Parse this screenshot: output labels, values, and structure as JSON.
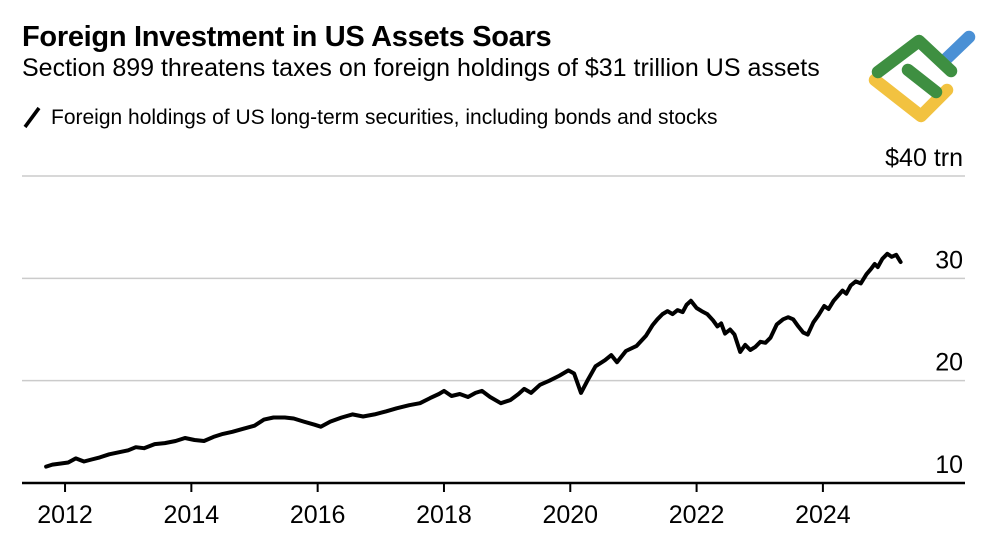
{
  "header": {
    "title": "Foreign Investment in US Assets Soars",
    "subtitle": "Section 899 threatens taxes on foreign holdings of $31 trillion US assets"
  },
  "legend": {
    "label": "Foreign holdings of US long-term securities, including bonds and stocks"
  },
  "logo": {
    "name": "litefinance-logo"
  },
  "colors": {
    "text": "#000000",
    "line": "#000000",
    "grid": "#cbcbcb",
    "axis": "#000000",
    "logo_green": "#3E8F41",
    "logo_blue": "#4A90D5",
    "logo_yellow": "#F2C240"
  },
  "chart_data": {
    "type": "line",
    "title": "Foreign Investment in US Assets Soars",
    "subtitle": "Section 899 threatens taxes on foreign holdings of $31 trillion US assets",
    "ylabel": "US$ trillion",
    "xlabel": "",
    "unit": "$ trn",
    "grid": "horizontal",
    "legend_position": "top-left",
    "x_domain": [
      2011.3185,
      2026.25
    ],
    "y_domain": [
      10,
      40
    ],
    "x_ticks": [
      {
        "year": 2012,
        "label": "2012"
      },
      {
        "year": 2014,
        "label": "2014"
      },
      {
        "year": 2016,
        "label": "2016"
      },
      {
        "year": 2018,
        "label": "2018"
      },
      {
        "year": 2020,
        "label": "2020"
      },
      {
        "year": 2022,
        "label": "2022"
      },
      {
        "year": 2024,
        "label": "2024"
      }
    ],
    "y_ticks": [
      {
        "value": 40,
        "label": "$40 trn"
      },
      {
        "value": 30,
        "label": "30"
      },
      {
        "value": 20,
        "label": "20"
      },
      {
        "value": 10,
        "label": "10"
      }
    ],
    "series": [
      {
        "name": "Foreign holdings of US long-term securities, including bonds and stocks",
        "color": "#000000",
        "points": [
          [
            2011.7,
            11.6
          ],
          [
            2011.8,
            11.8
          ],
          [
            2011.92,
            11.9
          ],
          [
            2012.05,
            12.0
          ],
          [
            2012.17,
            12.4
          ],
          [
            2012.3,
            12.1
          ],
          [
            2012.42,
            12.3
          ],
          [
            2012.55,
            12.5
          ],
          [
            2012.7,
            12.8
          ],
          [
            2012.85,
            13.0
          ],
          [
            2013.0,
            13.2
          ],
          [
            2013.12,
            13.5
          ],
          [
            2013.25,
            13.4
          ],
          [
            2013.42,
            13.8
          ],
          [
            2013.58,
            13.9
          ],
          [
            2013.75,
            14.1
          ],
          [
            2013.9,
            14.4
          ],
          [
            2014.05,
            14.2
          ],
          [
            2014.2,
            14.1
          ],
          [
            2014.35,
            14.5
          ],
          [
            2014.5,
            14.8
          ],
          [
            2014.65,
            15.0
          ],
          [
            2014.82,
            15.3
          ],
          [
            2015.0,
            15.6
          ],
          [
            2015.15,
            16.2
          ],
          [
            2015.3,
            16.4
          ],
          [
            2015.48,
            16.4
          ],
          [
            2015.62,
            16.3
          ],
          [
            2015.78,
            16.0
          ],
          [
            2015.95,
            15.7
          ],
          [
            2016.05,
            15.5
          ],
          [
            2016.2,
            16.0
          ],
          [
            2016.38,
            16.4
          ],
          [
            2016.55,
            16.7
          ],
          [
            2016.72,
            16.5
          ],
          [
            2016.9,
            16.7
          ],
          [
            2017.08,
            17.0
          ],
          [
            2017.25,
            17.3
          ],
          [
            2017.45,
            17.6
          ],
          [
            2017.62,
            17.8
          ],
          [
            2017.78,
            18.3
          ],
          [
            2017.92,
            18.7
          ],
          [
            2018.0,
            19.0
          ],
          [
            2018.12,
            18.5
          ],
          [
            2018.25,
            18.7
          ],
          [
            2018.38,
            18.4
          ],
          [
            2018.5,
            18.8
          ],
          [
            2018.6,
            19.0
          ],
          [
            2018.73,
            18.4
          ],
          [
            2018.9,
            17.8
          ],
          [
            2019.05,
            18.1
          ],
          [
            2019.18,
            18.7
          ],
          [
            2019.27,
            19.2
          ],
          [
            2019.38,
            18.8
          ],
          [
            2019.52,
            19.6
          ],
          [
            2019.67,
            20.0
          ],
          [
            2019.83,
            20.5
          ],
          [
            2019.97,
            21.0
          ],
          [
            2020.06,
            20.7
          ],
          [
            2020.17,
            18.8
          ],
          [
            2020.28,
            20.1
          ],
          [
            2020.4,
            21.4
          ],
          [
            2020.55,
            22.0
          ],
          [
            2020.65,
            22.5
          ],
          [
            2020.74,
            21.8
          ],
          [
            2020.88,
            22.9
          ],
          [
            2021.05,
            23.4
          ],
          [
            2021.2,
            24.4
          ],
          [
            2021.3,
            25.4
          ],
          [
            2021.38,
            26.0
          ],
          [
            2021.46,
            26.5
          ],
          [
            2021.54,
            26.8
          ],
          [
            2021.62,
            26.5
          ],
          [
            2021.7,
            26.9
          ],
          [
            2021.78,
            26.7
          ],
          [
            2021.84,
            27.4
          ],
          [
            2021.91,
            27.8
          ],
          [
            2022.0,
            27.1
          ],
          [
            2022.08,
            26.8
          ],
          [
            2022.17,
            26.5
          ],
          [
            2022.26,
            25.9
          ],
          [
            2022.33,
            25.3
          ],
          [
            2022.39,
            25.6
          ],
          [
            2022.45,
            24.6
          ],
          [
            2022.53,
            25.0
          ],
          [
            2022.6,
            24.5
          ],
          [
            2022.69,
            22.8
          ],
          [
            2022.77,
            23.5
          ],
          [
            2022.85,
            23.0
          ],
          [
            2022.93,
            23.3
          ],
          [
            2023.01,
            23.8
          ],
          [
            2023.09,
            23.7
          ],
          [
            2023.17,
            24.2
          ],
          [
            2023.27,
            25.5
          ],
          [
            2023.37,
            26.0
          ],
          [
            2023.45,
            26.2
          ],
          [
            2023.53,
            26.0
          ],
          [
            2023.61,
            25.3
          ],
          [
            2023.69,
            24.7
          ],
          [
            2023.76,
            24.5
          ],
          [
            2023.85,
            25.7
          ],
          [
            2023.93,
            26.4
          ],
          [
            2024.02,
            27.3
          ],
          [
            2024.09,
            27.0
          ],
          [
            2024.17,
            27.8
          ],
          [
            2024.24,
            28.3
          ],
          [
            2024.31,
            28.8
          ],
          [
            2024.37,
            28.5
          ],
          [
            2024.44,
            29.3
          ],
          [
            2024.52,
            29.7
          ],
          [
            2024.6,
            29.5
          ],
          [
            2024.69,
            30.4
          ],
          [
            2024.76,
            30.9
          ],
          [
            2024.82,
            31.4
          ],
          [
            2024.87,
            31.1
          ],
          [
            2024.94,
            31.9
          ],
          [
            2025.02,
            32.4
          ],
          [
            2025.09,
            32.1
          ],
          [
            2025.16,
            32.3
          ],
          [
            2025.23,
            31.6
          ]
        ]
      }
    ]
  }
}
